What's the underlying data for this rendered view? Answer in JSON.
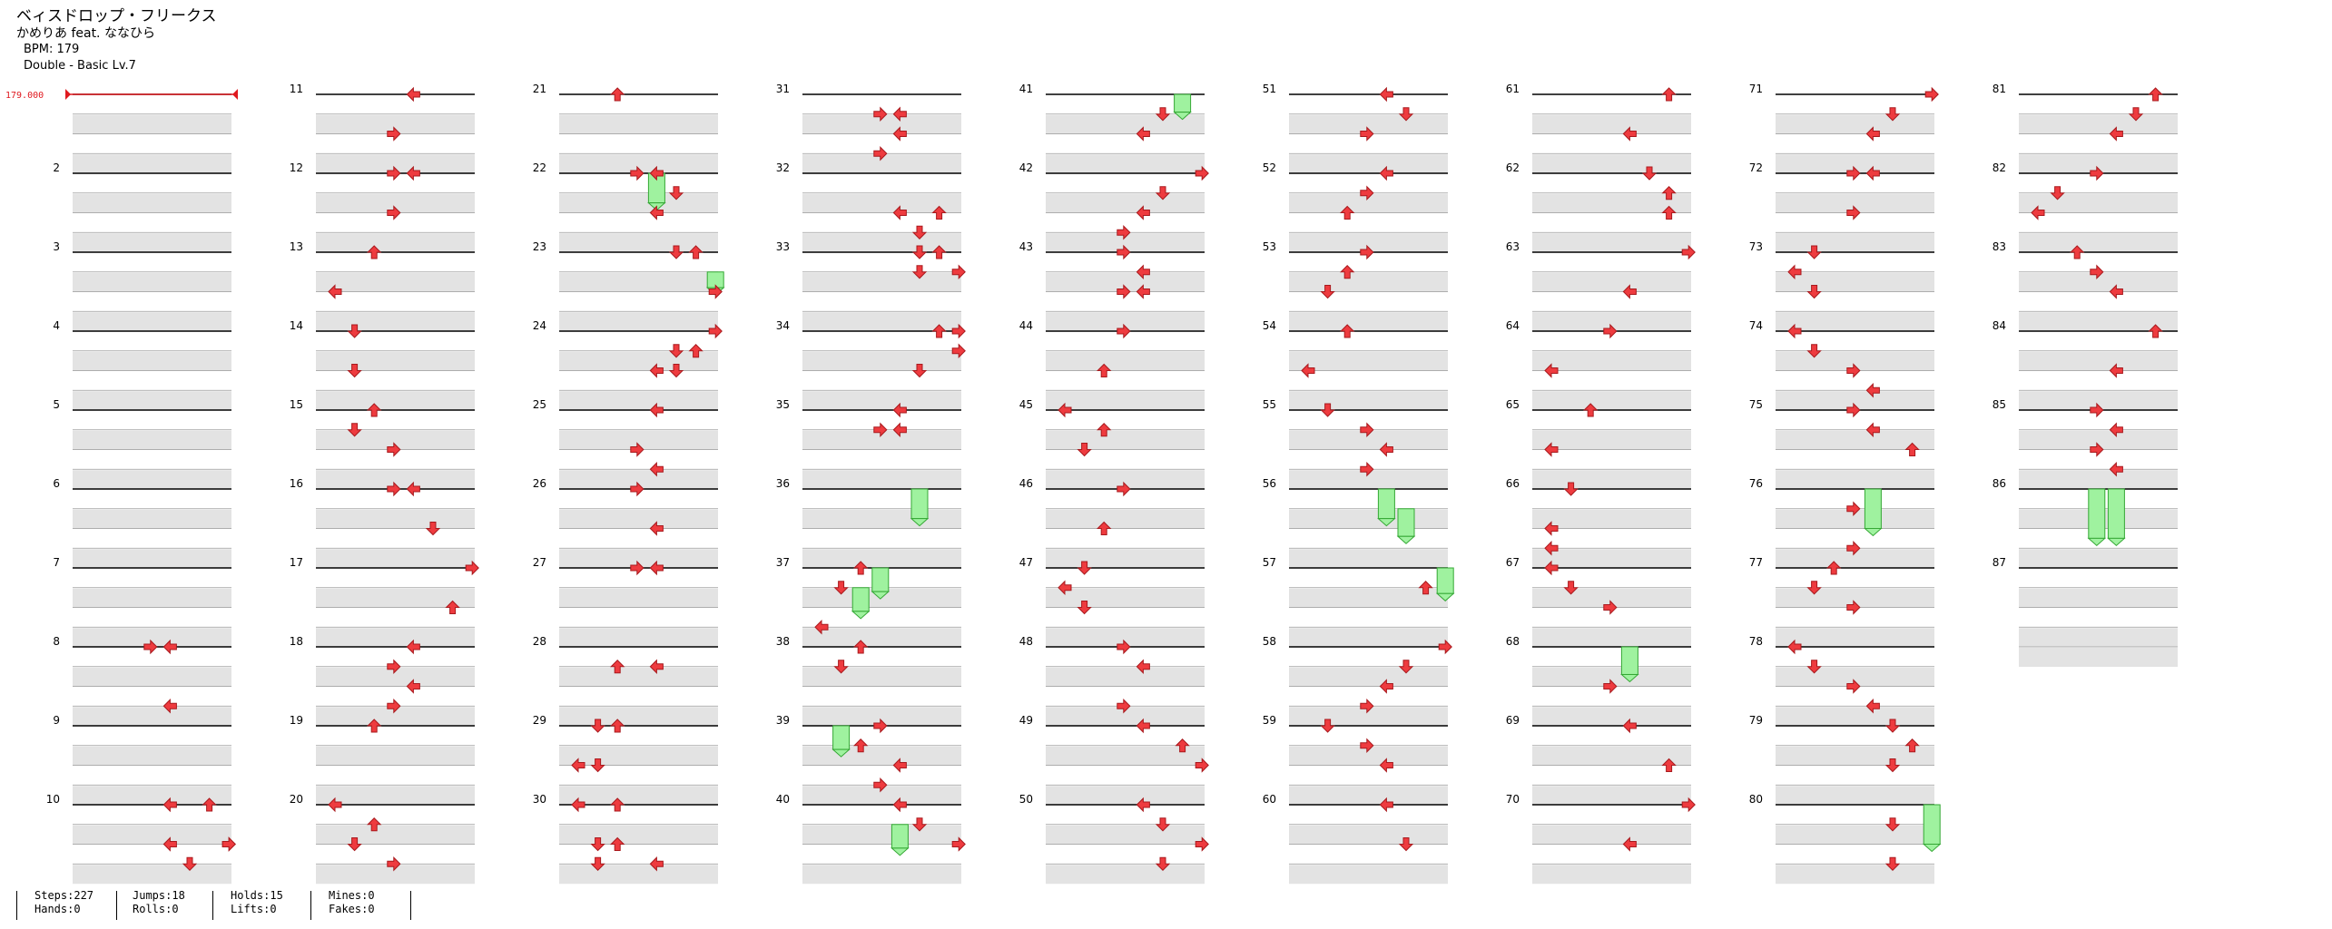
{
  "song": {
    "title": "ベィスドロップ・フリークス",
    "artist": "かめりあ feat. ななひら",
    "bpm_label": "BPM: 179",
    "difficulty_label": "Double - Basic  Lv.7"
  },
  "bpm_marker": {
    "label": "179.000",
    "color": "#e0191f"
  },
  "colors": {
    "arrow": "#ee3b3f",
    "hold_fill": "#9ff29f",
    "hold_stroke": "#35a835",
    "row_bg": "#e3e3e3",
    "measure_line": "#000000"
  },
  "chart_data": {
    "type": "step-chart",
    "mode": "Double",
    "measures": 87,
    "measure_numbers_shown": [
      2,
      3,
      4,
      5,
      6,
      7,
      8,
      9,
      10,
      11,
      12,
      13,
      14,
      15,
      16,
      17,
      18,
      19,
      20,
      21,
      22,
      23,
      24,
      25,
      26,
      27,
      28,
      29,
      30,
      31,
      32,
      33,
      34,
      35,
      36,
      37,
      38,
      39,
      40,
      41,
      42,
      43,
      44,
      45,
      46,
      47,
      48,
      49,
      50,
      51,
      52,
      53,
      54,
      55,
      56,
      57,
      58,
      59,
      60,
      61,
      62,
      63,
      64,
      65,
      66,
      67,
      68,
      69,
      70,
      71,
      72,
      73,
      74,
      75,
      76,
      77,
      78,
      79,
      80,
      81,
      82,
      83,
      84,
      85,
      86,
      87
    ]
  },
  "stats": {
    "steps": "Steps:227",
    "hands": "Hands:0",
    "jumps": "Jumps:18",
    "rolls": "Rolls:0",
    "holds": "Holds:15",
    "lifts": "Lifts:0",
    "mines": "Mines:0",
    "fakes": "Fakes:0"
  }
}
